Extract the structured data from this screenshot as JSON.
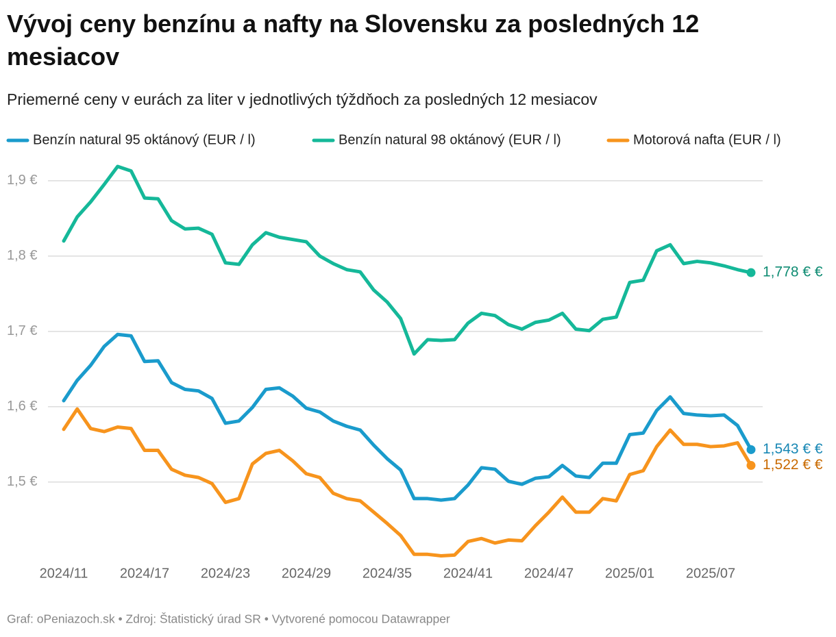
{
  "chart_data": {
    "type": "line",
    "title": "Vývoj ceny benzínu a nafty na Slovensku za posledných 12 mesiacov",
    "subtitle": "Priemerné ceny v eurách za liter v jednotlivých týždňoch za posledných 12 mesiacov",
    "footer": "Graf: oPeniazoch.sk • Zdroj: Štatistický úrad SR • Vytvorené pomocou Datawrapper",
    "categories": [
      "2024/11",
      null,
      null,
      null,
      null,
      null,
      "2024/17",
      null,
      null,
      null,
      null,
      null,
      "2024/23",
      null,
      null,
      null,
      null,
      null,
      "2024/29",
      null,
      null,
      null,
      null,
      null,
      "2024/35",
      null,
      null,
      null,
      null,
      null,
      "2024/41",
      null,
      null,
      null,
      null,
      null,
      "2024/47",
      null,
      null,
      null,
      null,
      null,
      "2025/01",
      null,
      null,
      null,
      null,
      null,
      "2025/07",
      null,
      null,
      null
    ],
    "ylim": [
      1.397,
      1.919
    ],
    "yticks": [
      {
        "value": 1.5,
        "label": "1,5 €"
      },
      {
        "value": 1.6,
        "label": "1,6 €"
      },
      {
        "value": 1.7,
        "label": "1,7 €"
      },
      {
        "value": 1.8,
        "label": "1,8 €"
      },
      {
        "value": 1.9,
        "label": "1,9 €"
      }
    ],
    "grid": true,
    "legend": "top",
    "series": [
      {
        "name": "Benzín natural 95 oktánový (EUR / l)",
        "color": "#1a9bcc",
        "label_color": "#1787b4",
        "end_label": "1,543 € €",
        "values": [
          1.608,
          1.635,
          1.655,
          1.68,
          1.696,
          1.694,
          1.66,
          1.661,
          1.632,
          1.623,
          1.621,
          1.611,
          1.578,
          1.581,
          1.599,
          1.623,
          1.625,
          1.614,
          1.598,
          1.593,
          1.581,
          1.574,
          1.569,
          1.549,
          1.531,
          1.516,
          1.478,
          1.478,
          1.476,
          1.478,
          1.496,
          1.519,
          1.517,
          1.501,
          1.497,
          1.505,
          1.507,
          1.522,
          1.508,
          1.506,
          1.525,
          1.525,
          1.563,
          1.565,
          1.595,
          1.613,
          1.591,
          1.589,
          1.588,
          1.589,
          1.575,
          1.543
        ]
      },
      {
        "name": "Benzín natural 98 oktánový (EUR / l)",
        "color": "#15b899",
        "label_color": "#0f8c73",
        "end_label": "1,778 € €",
        "values": [
          1.82,
          1.852,
          1.872,
          1.895,
          1.919,
          1.913,
          1.877,
          1.876,
          1.847,
          1.836,
          1.837,
          1.829,
          1.791,
          1.789,
          1.815,
          1.831,
          1.825,
          1.822,
          1.819,
          1.8,
          1.79,
          1.782,
          1.779,
          1.755,
          1.739,
          1.717,
          1.67,
          1.689,
          1.688,
          1.689,
          1.711,
          1.724,
          1.721,
          1.709,
          1.703,
          1.712,
          1.715,
          1.724,
          1.703,
          1.701,
          1.716,
          1.719,
          1.765,
          1.768,
          1.807,
          1.815,
          1.79,
          1.793,
          1.791,
          1.787,
          1.782,
          1.778
        ]
      },
      {
        "name": "Motorová nafta (EUR / l)",
        "color": "#f7941d",
        "label_color": "#c96a00",
        "end_label": "1,522 € €",
        "values": [
          1.57,
          1.597,
          1.571,
          1.567,
          1.573,
          1.571,
          1.542,
          1.542,
          1.517,
          1.509,
          1.506,
          1.498,
          1.473,
          1.478,
          1.524,
          1.538,
          1.542,
          1.528,
          1.511,
          1.506,
          1.485,
          1.478,
          1.475,
          1.46,
          1.445,
          1.429,
          1.404,
          1.404,
          1.402,
          1.403,
          1.421,
          1.425,
          1.419,
          1.423,
          1.422,
          1.442,
          1.46,
          1.48,
          1.46,
          1.46,
          1.478,
          1.475,
          1.51,
          1.515,
          1.547,
          1.569,
          1.55,
          1.55,
          1.547,
          1.548,
          1.552,
          1.522
        ]
      }
    ]
  }
}
